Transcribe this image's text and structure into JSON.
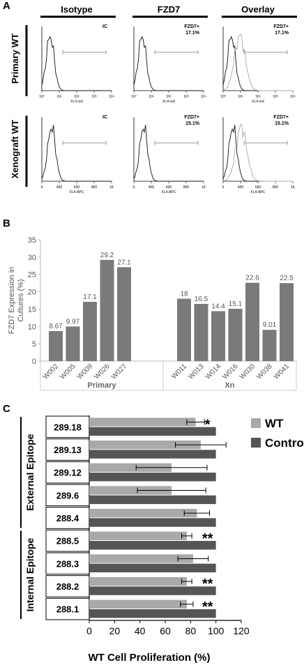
{
  "panelA": {
    "letter": "A",
    "columns": [
      "Isotype",
      "FZD7",
      "Overlay"
    ],
    "rows": [
      {
        "label": "Primary WT",
        "axis_label": "FL4 red",
        "cells": [
          {
            "tag": "IC",
            "pct": ""
          },
          {
            "tag": "FZD7+",
            "pct": "17.1%"
          },
          {
            "tag": "FZD7+",
            "pct": "17.1%"
          }
        ]
      },
      {
        "label": "Xenograft WT",
        "axis_label": "FL4-APC",
        "cells": [
          {
            "tag": "IC",
            "pct": ""
          },
          {
            "tag": "FZD7+",
            "pct": "15.1%"
          },
          {
            "tag": "FZD7+",
            "pct": "15.1%"
          }
        ]
      }
    ],
    "tick_labels_row2": [
      "0",
      "400",
      "600",
      "800",
      "1K"
    ]
  },
  "chart_data": [
    {
      "panel": "B",
      "type": "bar",
      "ylabel": "FZD7 Expression in Cultures (%)",
      "ylim": [
        0,
        35
      ],
      "yticks": [
        0,
        5,
        10,
        15,
        20,
        25,
        30,
        35
      ],
      "grid": false,
      "color": "#7a7a7a",
      "groups": [
        {
          "name": "Primary",
          "categories": [
            "W002",
            "W005",
            "W009",
            "W026",
            "W027"
          ],
          "values": [
            8.67,
            9.97,
            17.1,
            29.2,
            27.1
          ],
          "labels": [
            "8.67",
            "9.97",
            "17.1",
            "29.2",
            "27.1"
          ]
        },
        {
          "name": "Xn",
          "categories": [
            "W011",
            "W013",
            "W014",
            "W016",
            "W030",
            "W038",
            "W041"
          ],
          "values": [
            18,
            16.5,
            14.4,
            15.1,
            22.6,
            9.01,
            22.5
          ],
          "labels": [
            "18",
            "16.5",
            "14.4",
            "15.1",
            "22.6",
            "9.01",
            "22.5"
          ]
        }
      ]
    },
    {
      "panel": "C",
      "type": "bar",
      "orientation": "horizontal",
      "xlabel": "WT Cell Proliferation (%)",
      "xlim": [
        0,
        120
      ],
      "xticks": [
        0,
        20,
        40,
        60,
        80,
        100,
        120
      ],
      "categories": [
        "289.18",
        "289.13",
        "289.12",
        "289.6",
        "288.4",
        "288.5",
        "288.3",
        "288.2",
        "288.1"
      ],
      "category_groups": [
        {
          "name": "External Epitope",
          "members": [
            "289.18",
            "289.13",
            "289.12",
            "289.6",
            "288.4"
          ]
        },
        {
          "name": "Internal Epitope",
          "members": [
            "288.5",
            "288.3",
            "288.2",
            "288.1"
          ]
        }
      ],
      "series": [
        {
          "name": "WT",
          "color": "#a9a9a9",
          "values": [
            84,
            88,
            65,
            65,
            85,
            77,
            82,
            77,
            77
          ],
          "errors": [
            7,
            20,
            28,
            27,
            10,
            4,
            12,
            4,
            5
          ]
        },
        {
          "name": "Control",
          "color": "#555555",
          "values": [
            100,
            100,
            100,
            100,
            100,
            100,
            100,
            100,
            100
          ]
        }
      ],
      "significance": [
        "*",
        "",
        "",
        "",
        "",
        "**",
        "",
        "**",
        "**"
      ],
      "legend": "top-right"
    }
  ],
  "panel_letters": {
    "b": "B",
    "c": "C"
  }
}
